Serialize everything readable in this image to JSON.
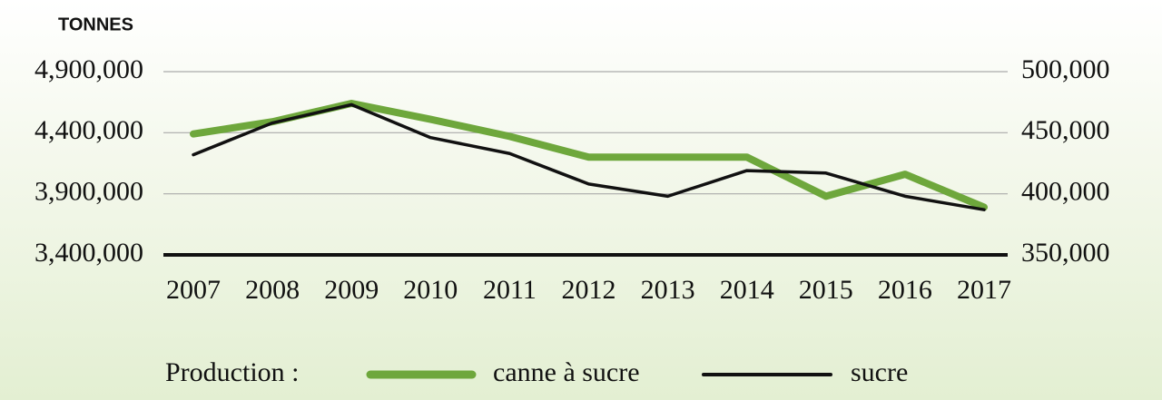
{
  "chart_data": {
    "type": "line",
    "y_label": "TONNES",
    "legend_title": "Production :",
    "categories": [
      "2007",
      "2008",
      "2009",
      "2010",
      "2011",
      "2012",
      "2013",
      "2014",
      "2015",
      "2016",
      "2017"
    ],
    "series": [
      {
        "name": "canne à sucre",
        "color": "#6ea73c",
        "values": [
          4390000,
          4490000,
          4640000,
          4510000,
          4370000,
          4200000,
          4200000,
          4200000,
          3880000,
          4060000,
          3790000
        ]
      },
      {
        "name": "sucre",
        "color": "#111111",
        "axis": "y2",
        "values": [
          432000,
          458000,
          473000,
          446000,
          433000,
          408000,
          398000,
          419000,
          417000,
          398000,
          387000
        ]
      }
    ],
    "ylim": [
      3400000,
      4900000
    ],
    "yticks": [
      {
        "value": 3400000,
        "label": "3,400,000"
      },
      {
        "value": 3900000,
        "label": "3,900,000"
      },
      {
        "value": 4400000,
        "label": "4,400,000"
      },
      {
        "value": 4900000,
        "label": "4,900,000"
      }
    ],
    "y2lim": [
      350000,
      500000
    ],
    "y2ticks": [
      {
        "value": 350000,
        "label": "350,000"
      },
      {
        "value": 400000,
        "label": "400,000"
      },
      {
        "value": 450000,
        "label": "450,000"
      },
      {
        "value": 500000,
        "label": "500,000"
      }
    ],
    "grid": true,
    "legend": "bottom"
  }
}
